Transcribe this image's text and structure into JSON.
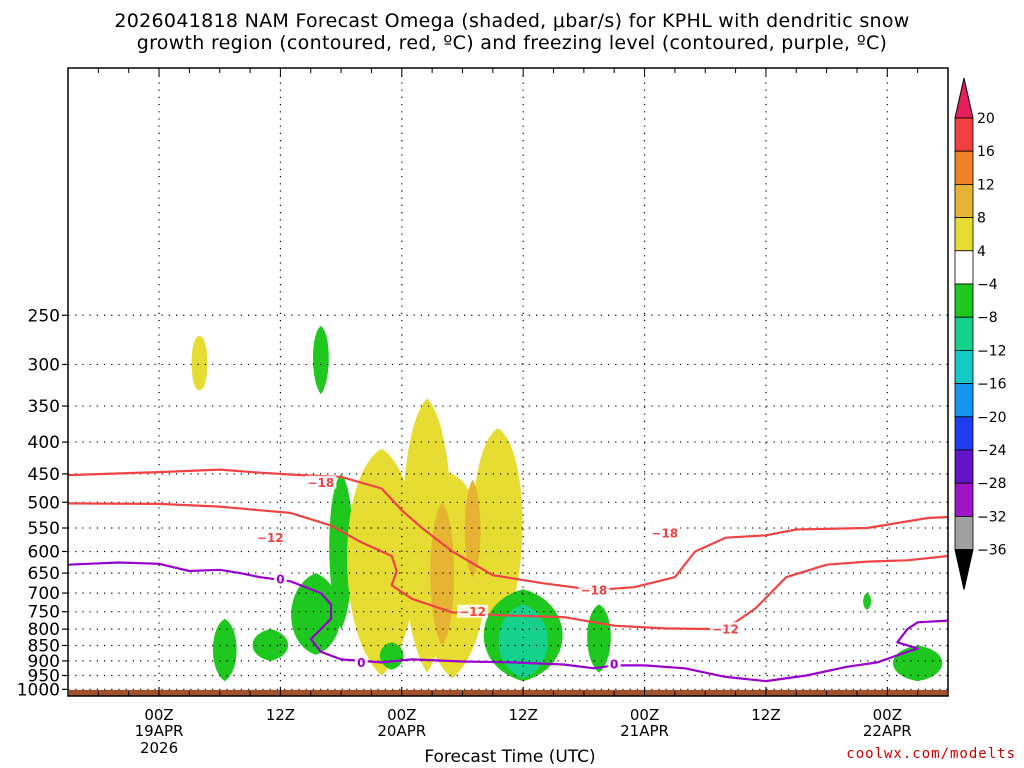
{
  "title_line1": "2026041818 NAM Forecast Omega (shaded, μbar/s) for KPHL with dendritic snow",
  "title_line2": "growth region (contoured, red, ºC) and freezing level (contoured, purple, ºC)",
  "credit": "coolwx.com/modelts",
  "colors": {
    "dgz_contour": "#f04444",
    "freezing_contour": "#9900cc",
    "ground": "#a0522d"
  },
  "chart_data": {
    "type": "heatmap",
    "title": "2026041818 NAM Forecast Omega (shaded, μbar/s) for KPHL with dendritic snow growth region (contoured, red, ºC) and freezing level (contoured, purple, ºC)",
    "xlabel": "Forecast Time (UTC)",
    "ylabel": "",
    "x_range_hours": [
      -9,
      78
    ],
    "y_range_hpa": [
      100,
      1025
    ],
    "y_scale": "log",
    "grid": true,
    "x_ticks": [
      {
        "hour": 0,
        "label": "00Z",
        "sub": [
          "19APR",
          "2026"
        ]
      },
      {
        "hour": 12,
        "label": "12Z",
        "sub": []
      },
      {
        "hour": 24,
        "label": "00Z",
        "sub": [
          "20APR"
        ]
      },
      {
        "hour": 36,
        "label": "12Z",
        "sub": []
      },
      {
        "hour": 48,
        "label": "00Z",
        "sub": [
          "21APR"
        ]
      },
      {
        "hour": 60,
        "label": "12Z",
        "sub": []
      },
      {
        "hour": 72,
        "label": "00Z",
        "sub": [
          "22APR"
        ]
      }
    ],
    "y_ticks": [
      250,
      300,
      350,
      400,
      450,
      500,
      550,
      600,
      650,
      700,
      750,
      800,
      850,
      900,
      950,
      1000
    ],
    "colorbar": {
      "levels": [
        20,
        16,
        12,
        8,
        4,
        -4,
        -8,
        -12,
        -16,
        -20,
        -24,
        -28,
        -32,
        -36
      ],
      "colors": [
        "#e81e5a",
        "#f04040",
        "#f08228",
        "#e6b432",
        "#e6dc32",
        "#ffffff",
        "#1ec81e",
        "#14d28c",
        "#14c8c8",
        "#1496f0",
        "#1e3cf0",
        "#6414c8",
        "#a014c8",
        "#a0a0a0",
        "#000000"
      ]
    },
    "contours": [
      {
        "name": "-18",
        "color": "dgz",
        "label_at": [
          [
            16,
            465
          ],
          [
            43,
            692
          ],
          [
            50,
            560
          ]
        ],
        "points": [
          [
            -9,
            452
          ],
          [
            0,
            447
          ],
          [
            6,
            443
          ],
          [
            10,
            448
          ],
          [
            14,
            452
          ],
          [
            18,
            455
          ],
          [
            22,
            475
          ],
          [
            24,
            515
          ],
          [
            26,
            550
          ],
          [
            29,
            600
          ],
          [
            33,
            655
          ],
          [
            38,
            675
          ],
          [
            43,
            692
          ],
          [
            47,
            685
          ],
          [
            51,
            660
          ],
          [
            53,
            600
          ],
          [
            56,
            570
          ],
          [
            60,
            565
          ],
          [
            63,
            553
          ],
          [
            70,
            550
          ],
          [
            76,
            530
          ],
          [
            78,
            528
          ]
        ]
      },
      {
        "name": "-12",
        "color": "dgz",
        "label_at": [
          [
            11,
            570
          ],
          [
            31,
            750
          ],
          [
            56,
            800
          ]
        ],
        "points": [
          [
            -9,
            502
          ],
          [
            0,
            503
          ],
          [
            6,
            508
          ],
          [
            10,
            515
          ],
          [
            13,
            520
          ],
          [
            17,
            545
          ],
          [
            20,
            580
          ],
          [
            23,
            610
          ],
          [
            23.5,
            645
          ],
          [
            23,
            680
          ],
          [
            25,
            715
          ],
          [
            29,
            752
          ],
          [
            34,
            760
          ],
          [
            40,
            765
          ],
          [
            45,
            790
          ],
          [
            50,
            798
          ],
          [
            55,
            800
          ],
          [
            56,
            800
          ],
          [
            59,
            740
          ],
          [
            62,
            660
          ],
          [
            66,
            630
          ],
          [
            70,
            623
          ],
          [
            74,
            620
          ],
          [
            78,
            610
          ]
        ]
      },
      {
        "name": "0",
        "color": "fz",
        "label_at": [
          [
            12,
            665
          ],
          [
            20,
            905
          ],
          [
            45,
            910
          ]
        ],
        "points": [
          [
            -9,
            630
          ],
          [
            -4,
            625
          ],
          [
            0,
            628
          ],
          [
            3,
            645
          ],
          [
            6,
            642
          ],
          [
            8,
            650
          ],
          [
            10,
            660
          ],
          [
            13,
            670
          ],
          [
            16,
            700
          ],
          [
            17,
            730
          ],
          [
            17,
            770
          ],
          [
            16,
            800
          ],
          [
            15,
            830
          ],
          [
            16,
            870
          ],
          [
            18,
            895
          ],
          [
            22,
            905
          ],
          [
            25,
            895
          ],
          [
            30,
            902
          ],
          [
            35,
            905
          ],
          [
            40,
            912
          ],
          [
            43,
            925
          ],
          [
            45,
            915
          ],
          [
            48,
            915
          ],
          [
            52,
            925
          ],
          [
            56,
            955
          ],
          [
            60,
            970
          ],
          [
            64,
            950
          ],
          [
            68,
            920
          ],
          [
            71,
            905
          ],
          [
            74,
            870
          ],
          [
            75,
            860
          ],
          [
            73,
            840
          ],
          [
            74,
            800
          ],
          [
            75,
            780
          ],
          [
            78,
            775
          ]
        ]
      }
    ],
    "shaded_regions": [
      {
        "level": 4,
        "center": [
          4,
          300
        ],
        "extent": [
          0.8,
          330,
          270
        ]
      },
      {
        "level": -8,
        "center": [
          16,
          285
        ],
        "extent": [
          0.8,
          260,
          335
        ]
      },
      {
        "level": -8,
        "center": [
          6.5,
          860
        ],
        "extent": [
          1.2,
          770,
          970
        ]
      },
      {
        "level": -8,
        "center": [
          11,
          850
        ],
        "extent": [
          1.8,
          800,
          900
        ]
      },
      {
        "level": -8,
        "center": [
          15.5,
          770
        ],
        "extent": [
          2.5,
          650,
          880
        ]
      },
      {
        "level": -8,
        "center": [
          18,
          550
        ],
        "extent": [
          1.2,
          450,
          800
        ]
      },
      {
        "level": 4,
        "center": [
          22,
          580
        ],
        "extent": [
          3.5,
          410,
          950
        ]
      },
      {
        "level": 4,
        "center": [
          26.5,
          520
        ],
        "extent": [
          2.5,
          340,
          940
        ]
      },
      {
        "level": 4,
        "center": [
          29,
          600
        ],
        "extent": [
          3.5,
          450,
          960
        ]
      },
      {
        "level": 4,
        "center": [
          33.5,
          490
        ],
        "extent": [
          2.5,
          380,
          820
        ]
      },
      {
        "level": 8,
        "center": [
          28,
          650
        ],
        "extent": [
          1.2,
          500,
          850
        ]
      },
      {
        "level": 8,
        "center": [
          31,
          560
        ],
        "extent": [
          0.8,
          460,
          660
        ]
      },
      {
        "level": -8,
        "center": [
          23,
          880
        ],
        "extent": [
          1.2,
          840,
          930
        ]
      },
      {
        "level": -8,
        "center": [
          36,
          820
        ],
        "extent": [
          4,
          690,
          970
        ]
      },
      {
        "level": -12,
        "center": [
          36,
          830
        ],
        "extent": [
          2.5,
          730,
          960
        ]
      },
      {
        "level": -8,
        "center": [
          43.5,
          810
        ],
        "extent": [
          1.2,
          730,
          940
        ]
      },
      {
        "level": -8,
        "center": [
          70,
          720
        ],
        "extent": [
          0.4,
          700,
          745
        ]
      },
      {
        "level": -8,
        "center": [
          75,
          905
        ],
        "extent": [
          2.5,
          850,
          970
        ]
      }
    ]
  }
}
